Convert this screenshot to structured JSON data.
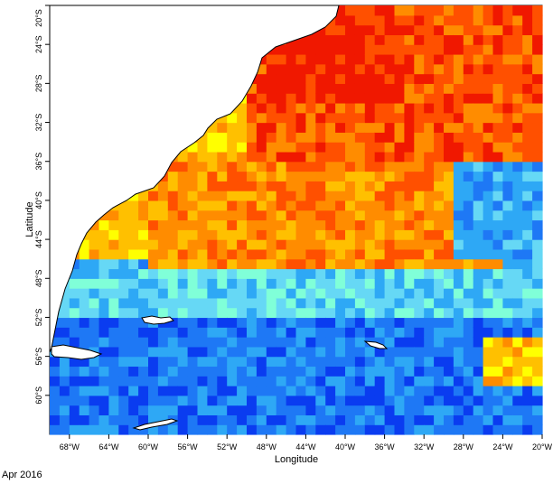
{
  "date_label": "Apr 2016",
  "chart_data": {
    "type": "heatmap",
    "title": "",
    "xlabel": "Longitude",
    "ylabel": "Latitude",
    "xlim": [
      -70,
      -20
    ],
    "ylim": [
      -64,
      -20
    ],
    "grid": false,
    "x_ticks": [
      {
        "v": -68,
        "label": "68°W"
      },
      {
        "v": -64,
        "label": "64°W"
      },
      {
        "v": -60,
        "label": "60°W"
      },
      {
        "v": -56,
        "label": "56°W"
      },
      {
        "v": -52,
        "label": "52°W"
      },
      {
        "v": -48,
        "label": "48°W"
      },
      {
        "v": -44,
        "label": "44°W"
      },
      {
        "v": -40,
        "label": "40°W"
      },
      {
        "v": -36,
        "label": "36°W"
      },
      {
        "v": -32,
        "label": "32°W"
      },
      {
        "v": -28,
        "label": "28°W"
      },
      {
        "v": -24,
        "label": "24°W"
      },
      {
        "v": -20,
        "label": "20°W"
      }
    ],
    "y_ticks": [
      {
        "v": -20,
        "label": "20°S"
      },
      {
        "v": -24,
        "label": "24°S"
      },
      {
        "v": -28,
        "label": "28°S"
      },
      {
        "v": -32,
        "label": "32°S"
      },
      {
        "v": -36,
        "label": "36°S"
      },
      {
        "v": -40,
        "label": "40°S"
      },
      {
        "v": -44,
        "label": "44°S"
      },
      {
        "v": -48,
        "label": "48°S"
      },
      {
        "v": -52,
        "label": "52°S"
      },
      {
        "v": -56,
        "label": "56°S"
      },
      {
        "v": -60,
        "label": "60°S"
      }
    ],
    "color_scale": [
      "#0000e0",
      "#0a3cf0",
      "#1e78f5",
      "#2ea8f5",
      "#66d8f5",
      "#80ffd8",
      "#aaff55",
      "#ffff00",
      "#ffc000",
      "#ff8c00",
      "#ff5000",
      "#f01800"
    ],
    "regions": [
      {
        "name": "north-warm",
        "lon": [
          -50,
          -20
        ],
        "lat": [
          -36,
          -20
        ],
        "level": 10
      },
      {
        "name": "core-hot",
        "lon": [
          -48,
          -34
        ],
        "lat": [
          -30,
          -21
        ],
        "level": 11
      },
      {
        "name": "mid-warm",
        "lon": [
          -60,
          -24
        ],
        "lat": [
          -47,
          -36
        ],
        "level": 9
      },
      {
        "name": "subantarctic",
        "lon": [
          -70,
          -20
        ],
        "lat": [
          -52,
          -47
        ],
        "level": 4
      },
      {
        "name": "southern-cold",
        "lon": [
          -70,
          -20
        ],
        "lat": [
          -64,
          -52
        ],
        "level": 2
      },
      {
        "name": "eastern-cold",
        "lon": [
          -29,
          -20
        ],
        "lat": [
          -46,
          -36
        ],
        "level": 3
      },
      {
        "name": "se-warm-patch",
        "lon": [
          -26,
          -20
        ],
        "lat": [
          -59,
          -54
        ],
        "level": 8
      }
    ]
  }
}
